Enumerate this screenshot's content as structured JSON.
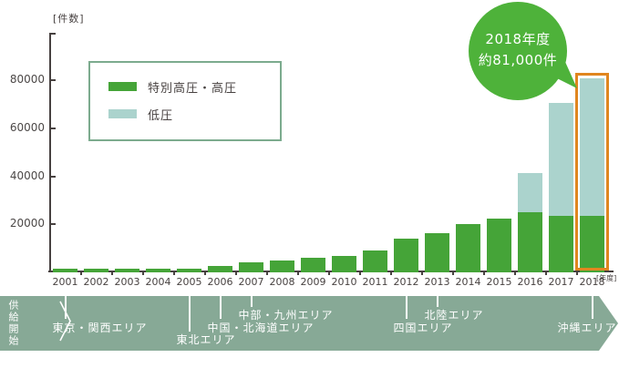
{
  "chart": {
    "y_unit_label": "[件数]",
    "x_unit_label": "[年度]"
  },
  "legend": {
    "items": [
      {
        "label": "特別高圧・高圧",
        "color": "#45a438"
      },
      {
        "label": "低圧",
        "color": "#abd3cd"
      }
    ]
  },
  "callout": {
    "line1": "2018年度",
    "line2": "約81,000件",
    "color": "#4eb23a"
  },
  "chart_data": {
    "type": "bar",
    "stacked": true,
    "categories": [
      "2001",
      "2002",
      "2003",
      "2004",
      "2005",
      "2006",
      "2007",
      "2008",
      "2009",
      "2010",
      "2011",
      "2012",
      "2013",
      "2014",
      "2015",
      "2016",
      "2017",
      "2018"
    ],
    "series": [
      {
        "name": "特別高圧・高圧",
        "color": "#45a438",
        "values": [
          1500,
          1500,
          1500,
          1600,
          1600,
          2800,
          4300,
          4900,
          5900,
          7000,
          9000,
          14000,
          16500,
          20300,
          22300,
          25000,
          23500,
          23500
        ]
      },
      {
        "name": "低圧",
        "color": "#abd3cd",
        "values": [
          0,
          0,
          0,
          0,
          0,
          0,
          0,
          0,
          0,
          0,
          0,
          0,
          0,
          0,
          0,
          16500,
          47000,
          57500
        ]
      }
    ],
    "ylabel": "件数",
    "xlabel": "年度",
    "yticks": [
      20000,
      40000,
      60000,
      80000
    ],
    "ylim": [
      0,
      98000
    ],
    "grid": false,
    "legend_position": "upper-left",
    "annotation": {
      "text": "2018年度 約81,000件",
      "target_year": "2018",
      "approx_total": 81000,
      "highlight_color": "#e0861f"
    }
  },
  "timeline": {
    "start_label": "供給開始",
    "band_color": "#87a996",
    "events": [
      {
        "year": "2001",
        "label": "東京・関西エリア",
        "row": 2
      },
      {
        "year": "2005",
        "label": "東北エリア",
        "row": 3
      },
      {
        "year": "2006",
        "label": "中国・北海道エリア",
        "row": 2
      },
      {
        "year": "2007",
        "label": "中部・九州エリア",
        "row": 1
      },
      {
        "year": "2012",
        "label": "四国エリア",
        "row": 2
      },
      {
        "year": "2013",
        "label": "北陸エリア",
        "row": 1
      },
      {
        "year": "2018",
        "label": "沖縄エリア",
        "row": 2,
        "dx": -38
      }
    ]
  }
}
